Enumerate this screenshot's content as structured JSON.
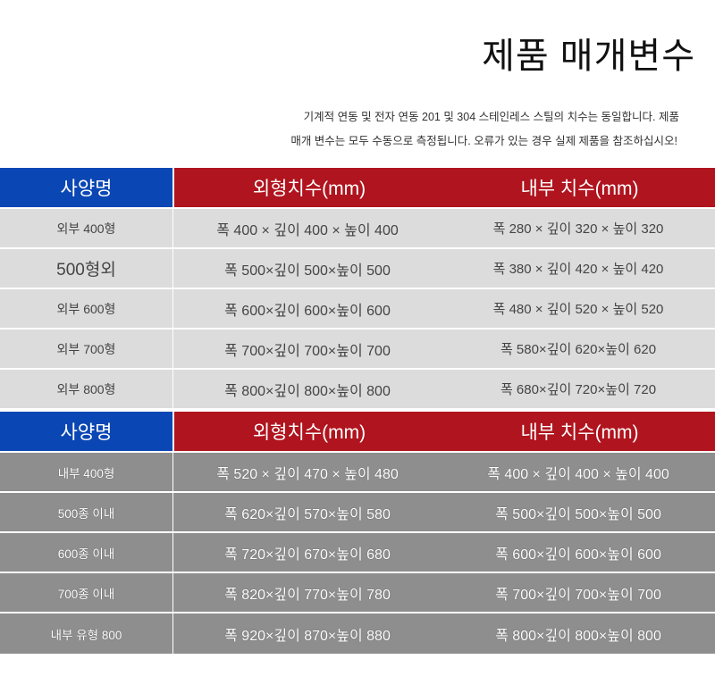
{
  "title": "제품 매개변수",
  "description": [
    "기계적 연동 및 전자 연동 201 및 304 스테인레스 스틸의 치수는 동일합니다. 제품",
    "매개 변수는 모두 수동으로 측정됩니다. 오류가 있는 경우 실제 제품을 참조하십시오!"
  ],
  "colors": {
    "header_blue": "#0b47b4",
    "header_red": "#b0141e",
    "row_light": "#dcdcdc",
    "row_dark": "#8e8e8e"
  },
  "tables": [
    {
      "headers": [
        "사양명",
        "외형치수(mm)",
        "내부 치수(mm)"
      ],
      "rows": [
        [
          "외부 400형",
          "폭 400 × 깊이 400 × 높이 400",
          "폭 280 × 깊이 320 × 높이 320"
        ],
        [
          "500형외",
          "폭 500×깊이 500×높이 500",
          "폭 380 × 깊이 420 × 높이 420"
        ],
        [
          "외부 600형",
          "폭 600×깊이 600×높이 600",
          "폭 480 × 깊이 520 × 높이 520"
        ],
        [
          "외부 700형",
          "폭 700×깊이 700×높이 700",
          "폭 580×깊이 620×높이 620"
        ],
        [
          "외부 800형",
          "폭 800×깊이 800×높이 800",
          "폭 680×깊이 720×높이 720"
        ]
      ]
    },
    {
      "headers": [
        "사양명",
        "외형치수(mm)",
        "내부 치수(mm)"
      ],
      "rows": [
        [
          "내부 400형",
          "폭 520 × 깊이 470 × 높이 480",
          "폭 400 × 깊이 400 × 높이 400"
        ],
        [
          "500종 이내",
          "폭 620×깊이 570×높이 580",
          "폭 500×깊이 500×높이 500"
        ],
        [
          "600종 이내",
          "폭 720×깊이 670×높이 680",
          "폭 600×깊이 600×높이 600"
        ],
        [
          "700종 이내",
          "폭 820×깊이 770×높이 780",
          "폭 700×깊이 700×높이 700"
        ],
        [
          "내부 유형 800",
          "폭 920×깊이 870×높이 880",
          "폭 800×깊이 800×높이 800"
        ]
      ]
    }
  ]
}
